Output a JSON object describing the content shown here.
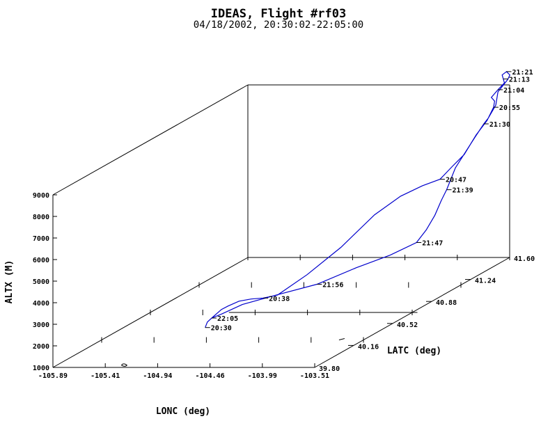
{
  "chart_data": {
    "type": "line3d",
    "title": "IDEAS, Flight #rf03",
    "subtitle": "04/18/2002, 20:30:02-22:05:00",
    "xlabel": "LONC (deg)",
    "ylabel": "LATC (deg)",
    "zlabel": "ALTX (M)",
    "x_ticks": [
      "-105.89",
      "-105.41",
      "-104.94",
      "-104.46",
      "-103.99",
      "-103.51"
    ],
    "y_ticks": [
      "39.80",
      "40.16",
      "40.52",
      "40.88",
      "41.24",
      "41.60"
    ],
    "z_ticks": [
      "1000",
      "2000",
      "3000",
      "4000",
      "5000",
      "6000",
      "7000",
      "8000",
      "9000"
    ],
    "xlim": [
      -105.89,
      -103.51
    ],
    "ylim": [
      39.8,
      41.6
    ],
    "zlim": [
      1000,
      9000
    ],
    "line_color": "#0000cc",
    "time_annotations": [
      "22:05",
      "20:30",
      "20:38",
      "21:56",
      "21:47",
      "21:39",
      "20:47",
      "21:30",
      "20:55",
      "21:04",
      "21:13",
      "21:21"
    ],
    "track": [
      {
        "t": "20:30",
        "lon": -104.87,
        "lat": 40.17,
        "alt": 1800
      },
      {
        "lon": -104.87,
        "lat": 40.19,
        "alt": 2000
      },
      {
        "t": "22:05",
        "lon": -104.86,
        "lat": 40.22,
        "alt": 2100
      },
      {
        "lon": -104.84,
        "lat": 40.29,
        "alt": 2300
      },
      {
        "lon": -104.8,
        "lat": 40.31,
        "alt": 2400
      },
      {
        "lon": -104.71,
        "lat": 40.32,
        "alt": 2600
      },
      {
        "lon": -104.6,
        "lat": 40.32,
        "alt": 2700
      },
      {
        "t": "20:38",
        "lon": -104.47,
        "lat": 40.3,
        "alt": 2800
      },
      {
        "lon": -104.32,
        "lat": 40.28,
        "alt": 3000
      },
      {
        "lon": -104.17,
        "lat": 40.4,
        "alt": 3600
      },
      {
        "lon": -104.06,
        "lat": 40.6,
        "alt": 4300
      },
      {
        "lon": -104.0,
        "lat": 40.85,
        "alt": 5100
      },
      {
        "lon": -103.96,
        "lat": 41.05,
        "alt": 5400
      },
      {
        "lon": -103.86,
        "lat": 41.15,
        "alt": 5600
      },
      {
        "t": "20:47",
        "lon": -103.7,
        "lat": 41.15,
        "alt": 5900
      },
      {
        "lon": -103.62,
        "lat": 41.18,
        "alt": 6400
      },
      {
        "lon": -103.53,
        "lat": 41.2,
        "alt": 6900
      },
      {
        "lon": -103.46,
        "lat": 41.24,
        "alt": 7700
      },
      {
        "lon": -103.42,
        "lat": 41.3,
        "alt": 8200
      },
      {
        "t": "20:55",
        "lon": -103.4,
        "lat": 41.34,
        "alt": 8700
      },
      {
        "lon": -103.42,
        "lat": 41.37,
        "alt": 8900
      },
      {
        "lon": -103.44,
        "lat": 41.36,
        "alt": 9100
      },
      {
        "t": "21:04",
        "lon": -103.4,
        "lat": 41.38,
        "alt": 9400
      },
      {
        "lon": -103.38,
        "lat": 41.42,
        "alt": 9600
      },
      {
        "t": "21:13",
        "lon": -103.42,
        "lat": 41.45,
        "alt": 9700
      },
      {
        "lon": -103.46,
        "lat": 41.48,
        "alt": 9800
      },
      {
        "t": "21:21",
        "lon": -103.44,
        "lat": 41.5,
        "alt": 9900
      },
      {
        "lon": -103.39,
        "lat": 41.48,
        "alt": 9800
      },
      {
        "lon": -103.37,
        "lat": 41.44,
        "alt": 9700
      },
      {
        "lon": -103.4,
        "lat": 41.38,
        "alt": 9300
      },
      {
        "lon": -103.38,
        "lat": 41.34,
        "alt": 8800
      },
      {
        "lon": -103.41,
        "lat": 41.3,
        "alt": 8300
      },
      {
        "t": "21:30",
        "lon": -103.43,
        "lat": 41.28,
        "alt": 8100
      },
      {
        "lon": -103.47,
        "lat": 41.24,
        "alt": 7600
      },
      {
        "lon": -103.52,
        "lat": 41.2,
        "alt": 7000
      },
      {
        "lon": -103.57,
        "lat": 41.16,
        "alt": 6400
      },
      {
        "t": "21:39",
        "lon": -103.61,
        "lat": 41.12,
        "alt": 5500
      },
      {
        "lon": -103.59,
        "lat": 41.05,
        "alt": 5200
      },
      {
        "lon": -103.55,
        "lat": 40.95,
        "alt": 4800
      },
      {
        "lon": -103.53,
        "lat": 40.85,
        "alt": 4400
      },
      {
        "t": "21:47",
        "lon": -103.52,
        "lat": 40.75,
        "alt": 4100
      },
      {
        "lon": -103.66,
        "lat": 40.65,
        "alt": 3800
      },
      {
        "lon": -103.87,
        "lat": 40.55,
        "alt": 3500
      },
      {
        "t": "21:56",
        "lon": -104.1,
        "lat": 40.42,
        "alt": 3100
      },
      {
        "lon": -104.4,
        "lat": 40.35,
        "alt": 2800
      },
      {
        "lon": -104.66,
        "lat": 40.3,
        "alt": 2500
      },
      {
        "lon": -104.8,
        "lat": 40.25,
        "alt": 2200
      },
      {
        "t": "22:05",
        "lon": -104.86,
        "lat": 40.22,
        "alt": 2100
      }
    ]
  }
}
